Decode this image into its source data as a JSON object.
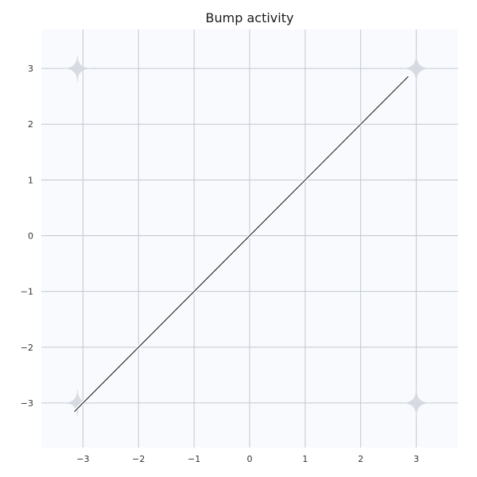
{
  "chart_data": {
    "type": "line",
    "title": "Bump activity",
    "xlabel": "",
    "ylabel": "",
    "xlim": [
      -3.75,
      3.75
    ],
    "ylim": [
      -3.8,
      3.7
    ],
    "x_ticks": [
      -3,
      -2,
      -1,
      0,
      1,
      2,
      3
    ],
    "y_ticks": [
      -3,
      -2,
      -1,
      0,
      1,
      2,
      3
    ],
    "x_tick_labels": [
      "−3",
      "−2",
      "−1",
      "0",
      "1",
      "2",
      "3"
    ],
    "y_tick_labels": [
      "−3",
      "−2",
      "−1",
      "0",
      "1",
      "2",
      "3"
    ],
    "grid": true,
    "series": [
      {
        "x": [
          -3.15,
          2.85
        ],
        "y": [
          -3.15,
          2.85
        ]
      }
    ],
    "star_markers": [
      {
        "x": -3.1,
        "y": 3.0
      },
      {
        "x": 3.0,
        "y": 3.0
      },
      {
        "x": -3.1,
        "y": -3.0
      },
      {
        "x": 3.0,
        "y": -3.0
      }
    ],
    "colors": {
      "background": "#ffffff",
      "plot_background": "#f8fafe",
      "grid": "#c2c7cf",
      "line": "#3c3c3c",
      "line_halo": "#ffffff",
      "marker": "#d5d9e0",
      "text": "#333333"
    }
  }
}
